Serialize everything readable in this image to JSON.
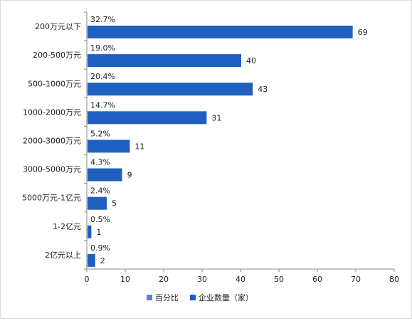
{
  "chart_data": {
    "type": "bar",
    "orientation": "horizontal",
    "categories": [
      "200万元以下",
      "200-500万元",
      "500-1000万元",
      "1000-2000万元",
      "2000-3000万元",
      "3000-5000万元",
      "5000万元-1亿元",
      "1-2亿元",
      "2亿元以上"
    ],
    "series": [
      {
        "name": "百分比",
        "values": [
          32.7,
          19.0,
          20.4,
          14.7,
          5.2,
          4.3,
          2.4,
          0.5,
          0.9
        ],
        "labels": [
          "32.7%",
          "19.0%",
          "20.4%",
          "14.7%",
          "5.2%",
          "4.3%",
          "2.4%",
          "0.5%",
          "0.9%"
        ],
        "color": "#5b7fe0"
      },
      {
        "name": "企业数量（家）",
        "values": [
          69,
          40,
          43,
          31,
          11,
          9,
          5,
          1,
          2
        ],
        "labels": [
          "69",
          "40",
          "43",
          "31",
          "11",
          "9",
          "5",
          "1",
          "2"
        ],
        "color": "#1f5fbf"
      }
    ],
    "x_ticks": [
      "0",
      "10",
      "20",
      "30",
      "40",
      "50",
      "60",
      "70",
      "80"
    ],
    "xlim": [
      0,
      80
    ],
    "grid": false,
    "legend_position": "bottom"
  }
}
